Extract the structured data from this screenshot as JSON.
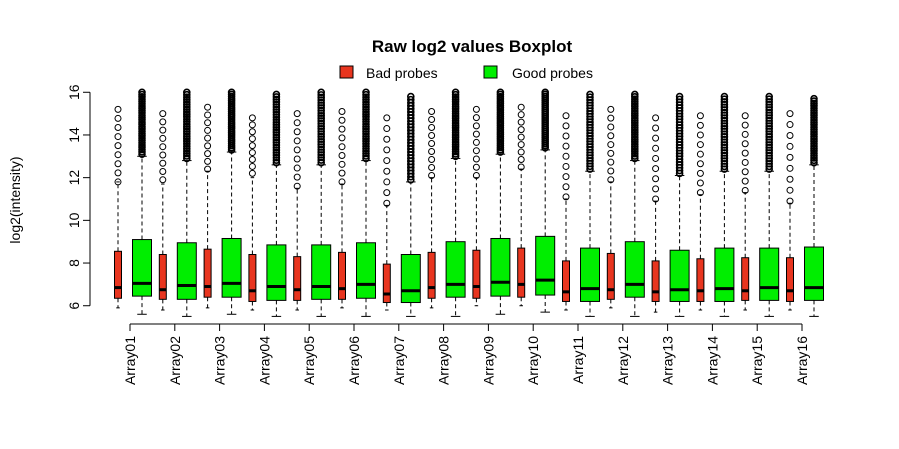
{
  "chart_data": {
    "type": "boxplot",
    "title": "Raw log2 values Boxplot",
    "xlabel": "",
    "ylabel": "log2(intensity)",
    "ylim": [
      5.8,
      16.2
    ],
    "yticks": [
      6,
      8,
      10,
      12,
      14,
      16
    ],
    "categories": [
      "Array01",
      "Array02",
      "Array03",
      "Array04",
      "Array05",
      "Array06",
      "Array07",
      "Array08",
      "Array09",
      "Array10",
      "Array11",
      "Array12",
      "Array13",
      "Array14",
      "Array15",
      "Array16"
    ],
    "legend": {
      "position": "top",
      "entries": [
        {
          "label": "Bad probes",
          "color": "#e8351f"
        },
        {
          "label": "Good probes",
          "color": "#00ee00"
        }
      ]
    },
    "grid": false,
    "series": [
      {
        "name": "Bad probes",
        "color": "#e8351f",
        "stats": [
          {
            "min": 5.9,
            "q1": 6.35,
            "median": 6.85,
            "q3": 8.55,
            "max": 11.8,
            "out_min": 11.8,
            "out_max": 15.2
          },
          {
            "min": 5.8,
            "q1": 6.3,
            "median": 6.75,
            "q3": 8.4,
            "max": 11.7,
            "out_min": 11.9,
            "out_max": 15.0
          },
          {
            "min": 5.9,
            "q1": 6.4,
            "median": 6.9,
            "q3": 8.65,
            "max": 12.3,
            "out_min": 12.4,
            "out_max": 15.3
          },
          {
            "min": 5.8,
            "q1": 6.2,
            "median": 6.7,
            "q3": 8.4,
            "max": 12.0,
            "out_min": 12.2,
            "out_max": 14.8
          },
          {
            "min": 5.8,
            "q1": 6.25,
            "median": 6.75,
            "q3": 8.3,
            "max": 11.5,
            "out_min": 11.6,
            "out_max": 15.0
          },
          {
            "min": 5.9,
            "q1": 6.3,
            "median": 6.8,
            "q3": 8.5,
            "max": 11.7,
            "out_min": 11.8,
            "out_max": 15.1
          },
          {
            "min": 5.8,
            "q1": 6.15,
            "median": 6.55,
            "q3": 7.95,
            "max": 10.7,
            "out_min": 10.8,
            "out_max": 14.8
          },
          {
            "min": 5.9,
            "q1": 6.35,
            "median": 6.85,
            "q3": 8.5,
            "max": 12.0,
            "out_min": 12.1,
            "out_max": 15.1
          },
          {
            "min": 6.0,
            "q1": 6.35,
            "median": 6.9,
            "q3": 8.6,
            "max": 12.0,
            "out_min": 12.1,
            "out_max": 15.2
          },
          {
            "min": 6.0,
            "q1": 6.4,
            "median": 7.0,
            "q3": 8.7,
            "max": 12.4,
            "out_min": 12.5,
            "out_max": 15.3
          },
          {
            "min": 5.8,
            "q1": 6.2,
            "median": 6.65,
            "q3": 8.1,
            "max": 11.0,
            "out_min": 11.1,
            "out_max": 14.9
          },
          {
            "min": 5.9,
            "q1": 6.3,
            "median": 6.75,
            "q3": 8.45,
            "max": 11.8,
            "out_min": 11.9,
            "out_max": 15.2
          },
          {
            "min": 5.7,
            "q1": 6.2,
            "median": 6.65,
            "q3": 8.1,
            "max": 10.9,
            "out_min": 11.0,
            "out_max": 14.8
          },
          {
            "min": 5.8,
            "q1": 6.2,
            "median": 6.7,
            "q3": 8.2,
            "max": 11.2,
            "out_min": 11.3,
            "out_max": 14.9
          },
          {
            "min": 5.8,
            "q1": 6.25,
            "median": 6.7,
            "q3": 8.25,
            "max": 11.3,
            "out_min": 11.4,
            "out_max": 14.9
          },
          {
            "min": 5.8,
            "q1": 6.2,
            "median": 6.7,
            "q3": 8.25,
            "max": 10.8,
            "out_min": 10.9,
            "out_max": 15.0
          }
        ]
      },
      {
        "name": "Good probes",
        "color": "#00ee00",
        "stats": [
          {
            "min": 5.6,
            "q1": 6.45,
            "median": 7.05,
            "q3": 9.1,
            "max": 13.0,
            "out_min": 13.1,
            "out_max": 16.0
          },
          {
            "min": 5.5,
            "q1": 6.3,
            "median": 6.95,
            "q3": 8.95,
            "max": 12.8,
            "out_min": 12.9,
            "out_max": 16.0
          },
          {
            "min": 5.6,
            "q1": 6.4,
            "median": 7.05,
            "q3": 9.15,
            "max": 13.2,
            "out_min": 13.3,
            "out_max": 16.0
          },
          {
            "min": 5.5,
            "q1": 6.25,
            "median": 6.9,
            "q3": 8.85,
            "max": 12.6,
            "out_min": 12.7,
            "out_max": 15.9
          },
          {
            "min": 5.5,
            "q1": 6.3,
            "median": 6.9,
            "q3": 8.85,
            "max": 12.6,
            "out_min": 12.7,
            "out_max": 16.0
          },
          {
            "min": 5.5,
            "q1": 6.35,
            "median": 7.0,
            "q3": 8.95,
            "max": 12.8,
            "out_min": 12.9,
            "out_max": 16.0
          },
          {
            "min": 5.5,
            "q1": 6.15,
            "median": 6.7,
            "q3": 8.4,
            "max": 11.8,
            "out_min": 11.9,
            "out_max": 15.8
          },
          {
            "min": 5.5,
            "q1": 6.4,
            "median": 7.0,
            "q3": 9.0,
            "max": 12.9,
            "out_min": 13.0,
            "out_max": 16.0
          },
          {
            "min": 5.6,
            "q1": 6.45,
            "median": 7.1,
            "q3": 9.15,
            "max": 13.1,
            "out_min": 13.2,
            "out_max": 16.0
          },
          {
            "min": 5.7,
            "q1": 6.5,
            "median": 7.2,
            "q3": 9.25,
            "max": 13.3,
            "out_min": 13.4,
            "out_max": 16.0
          },
          {
            "min": 5.5,
            "q1": 6.2,
            "median": 6.8,
            "q3": 8.7,
            "max": 12.3,
            "out_min": 12.4,
            "out_max": 15.9
          },
          {
            "min": 5.5,
            "q1": 6.4,
            "median": 7.0,
            "q3": 9.0,
            "max": 12.8,
            "out_min": 12.9,
            "out_max": 15.9
          },
          {
            "min": 5.5,
            "q1": 6.2,
            "median": 6.75,
            "q3": 8.6,
            "max": 12.1,
            "out_min": 12.2,
            "out_max": 15.8
          },
          {
            "min": 5.5,
            "q1": 6.2,
            "median": 6.8,
            "q3": 8.7,
            "max": 12.3,
            "out_min": 12.4,
            "out_max": 15.8
          },
          {
            "min": 5.5,
            "q1": 6.25,
            "median": 6.85,
            "q3": 8.7,
            "max": 12.3,
            "out_min": 12.4,
            "out_max": 15.8
          },
          {
            "min": 5.5,
            "q1": 6.25,
            "median": 6.85,
            "q3": 8.75,
            "max": 12.6,
            "out_min": 12.7,
            "out_max": 15.7
          }
        ]
      }
    ]
  }
}
